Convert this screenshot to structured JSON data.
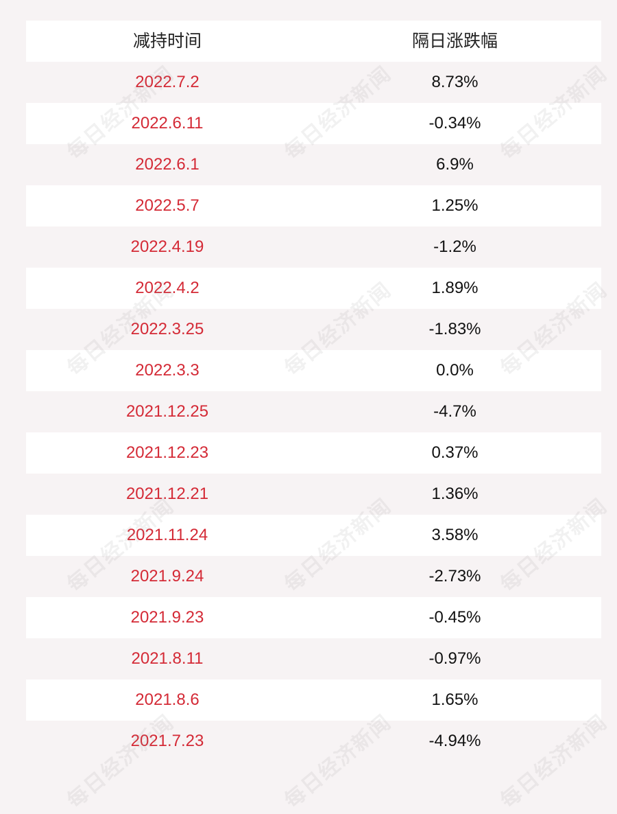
{
  "table": {
    "headers": {
      "date": "减持时间",
      "change": "隔日涨跌幅"
    },
    "rows": [
      {
        "date": "2022.7.2",
        "change": "8.73%"
      },
      {
        "date": "2022.6.11",
        "change": "-0.34%"
      },
      {
        "date": "2022.6.1",
        "change": "6.9%"
      },
      {
        "date": "2022.5.7",
        "change": "1.25%"
      },
      {
        "date": "2022.4.19",
        "change": "-1.2%"
      },
      {
        "date": "2022.4.2",
        "change": "1.89%"
      },
      {
        "date": "2022.3.25",
        "change": "-1.83%"
      },
      {
        "date": "2022.3.3",
        "change": "0.0%"
      },
      {
        "date": "2021.12.25",
        "change": "-4.7%"
      },
      {
        "date": "2021.12.23",
        "change": "0.37%"
      },
      {
        "date": "2021.12.21",
        "change": "1.36%"
      },
      {
        "date": "2021.11.24",
        "change": "3.58%"
      },
      {
        "date": "2021.9.24",
        "change": "-2.73%"
      },
      {
        "date": "2021.9.23",
        "change": "-0.45%"
      },
      {
        "date": "2021.8.11",
        "change": "-0.97%"
      },
      {
        "date": "2021.8.6",
        "change": "1.65%"
      },
      {
        "date": "2021.7.23",
        "change": "-4.94%"
      }
    ]
  },
  "watermark": {
    "text": "每日经济新闻"
  },
  "colors": {
    "date_text": "#d42a36",
    "value_text": "#111111",
    "row_white": "#ffffff",
    "row_tint": "#f7f3f4"
  }
}
